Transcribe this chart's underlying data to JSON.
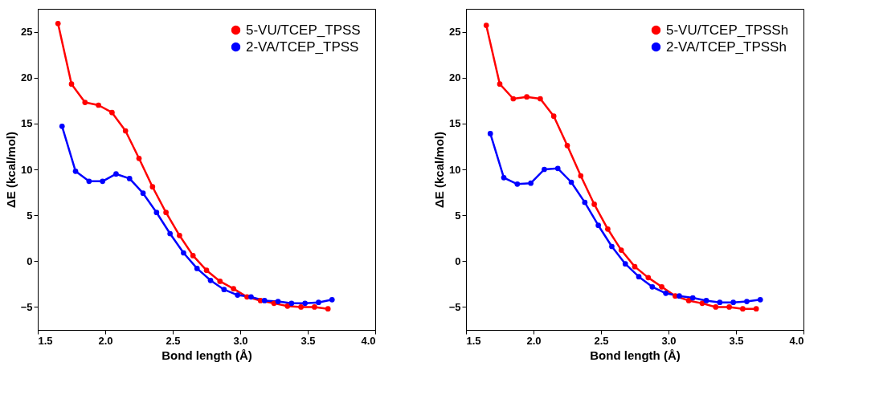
{
  "chart_data": [
    {
      "type": "line",
      "xlabel": "Bond length (Å)",
      "ylabel": "ΔE (kcal/mol)",
      "xlim": [
        1.5,
        4.0
      ],
      "xticks": [
        1.5,
        {
          "value": 2,
          "label": "2.0"
        },
        2.5,
        {
          "value": 3,
          "label": "3.0"
        },
        3.5,
        {
          "value": 4,
          "label": "4.0"
        }
      ],
      "ylim": [
        -7.5,
        27.5
      ],
      "yticks": [
        -5,
        0,
        5,
        10,
        15,
        20,
        25
      ],
      "grid": false,
      "legend": "top right",
      "marker": "circle",
      "line_style": "solid",
      "series": [
        {
          "name": "5-VU/TCEP_TPSS",
          "color": "#ff0000",
          "x": [
            1.65,
            1.75,
            1.85,
            1.95,
            2.05,
            2.15,
            2.25,
            2.35,
            2.45,
            2.55,
            2.65,
            2.75,
            2.85,
            2.95,
            3.05,
            3.15,
            3.25,
            3.35,
            3.45,
            3.55,
            3.65
          ],
          "values": [
            25.9,
            19.3,
            17.3,
            17.0,
            16.2,
            14.2,
            11.2,
            8.1,
            5.3,
            2.8,
            0.6,
            -1.0,
            -2.2,
            -3.0,
            -3.9,
            -4.3,
            -4.6,
            -4.9,
            -5.0,
            -5.0,
            -5.2
          ]
        },
        {
          "name": "2-VA/TCEP_TPSS",
          "color": "#0000ff",
          "x": [
            1.68,
            1.78,
            1.88,
            1.98,
            2.08,
            2.18,
            2.28,
            2.38,
            2.48,
            2.58,
            2.68,
            2.78,
            2.88,
            2.98,
            3.08,
            3.18,
            3.28,
            3.38,
            3.48,
            3.58,
            3.68
          ],
          "values": [
            14.7,
            9.8,
            8.7,
            8.7,
            9.5,
            9.0,
            7.4,
            5.3,
            3.0,
            0.9,
            -0.8,
            -2.1,
            -3.1,
            -3.7,
            -3.9,
            -4.3,
            -4.4,
            -4.6,
            -4.6,
            -4.5,
            -4.2
          ]
        }
      ]
    },
    {
      "type": "line",
      "xlabel": "Bond length (Å)",
      "ylabel": "ΔE (kcal/mol)",
      "xlim": [
        1.5,
        4.0
      ],
      "xticks": [
        1.5,
        {
          "value": 2,
          "label": "2.0"
        },
        2.5,
        {
          "value": 3,
          "label": "3.0"
        },
        3.5,
        {
          "value": 4,
          "label": "4.0"
        }
      ],
      "ylim": [
        -7.5,
        27.5
      ],
      "yticks": [
        -5,
        0,
        5,
        10,
        15,
        20,
        25
      ],
      "grid": false,
      "legend": "top right",
      "marker": "circle",
      "line_style": "solid",
      "series": [
        {
          "name": "5-VU/TCEP_TPSSh",
          "color": "#ff0000",
          "x": [
            1.65,
            1.75,
            1.85,
            1.95,
            2.05,
            2.15,
            2.25,
            2.35,
            2.45,
            2.55,
            2.65,
            2.75,
            2.85,
            2.95,
            3.05,
            3.15,
            3.25,
            3.35,
            3.45,
            3.55,
            3.65
          ],
          "values": [
            25.7,
            19.3,
            17.7,
            17.9,
            17.7,
            15.8,
            12.6,
            9.3,
            6.2,
            3.5,
            1.2,
            -0.6,
            -1.8,
            -2.8,
            -3.8,
            -4.3,
            -4.6,
            -5.0,
            -5.0,
            -5.2,
            -5.2
          ]
        },
        {
          "name": "2-VA/TCEP_TPSSh",
          "color": "#0000ff",
          "x": [
            1.68,
            1.78,
            1.88,
            1.98,
            2.08,
            2.18,
            2.28,
            2.38,
            2.48,
            2.58,
            2.68,
            2.78,
            2.88,
            2.98,
            3.08,
            3.18,
            3.28,
            3.38,
            3.48,
            3.58,
            3.68
          ],
          "values": [
            13.9,
            9.1,
            8.4,
            8.5,
            10.0,
            10.1,
            8.6,
            6.4,
            3.9,
            1.6,
            -0.3,
            -1.7,
            -2.8,
            -3.5,
            -3.8,
            -4.0,
            -4.3,
            -4.5,
            -4.5,
            -4.4,
            -4.2
          ]
        }
      ]
    }
  ]
}
